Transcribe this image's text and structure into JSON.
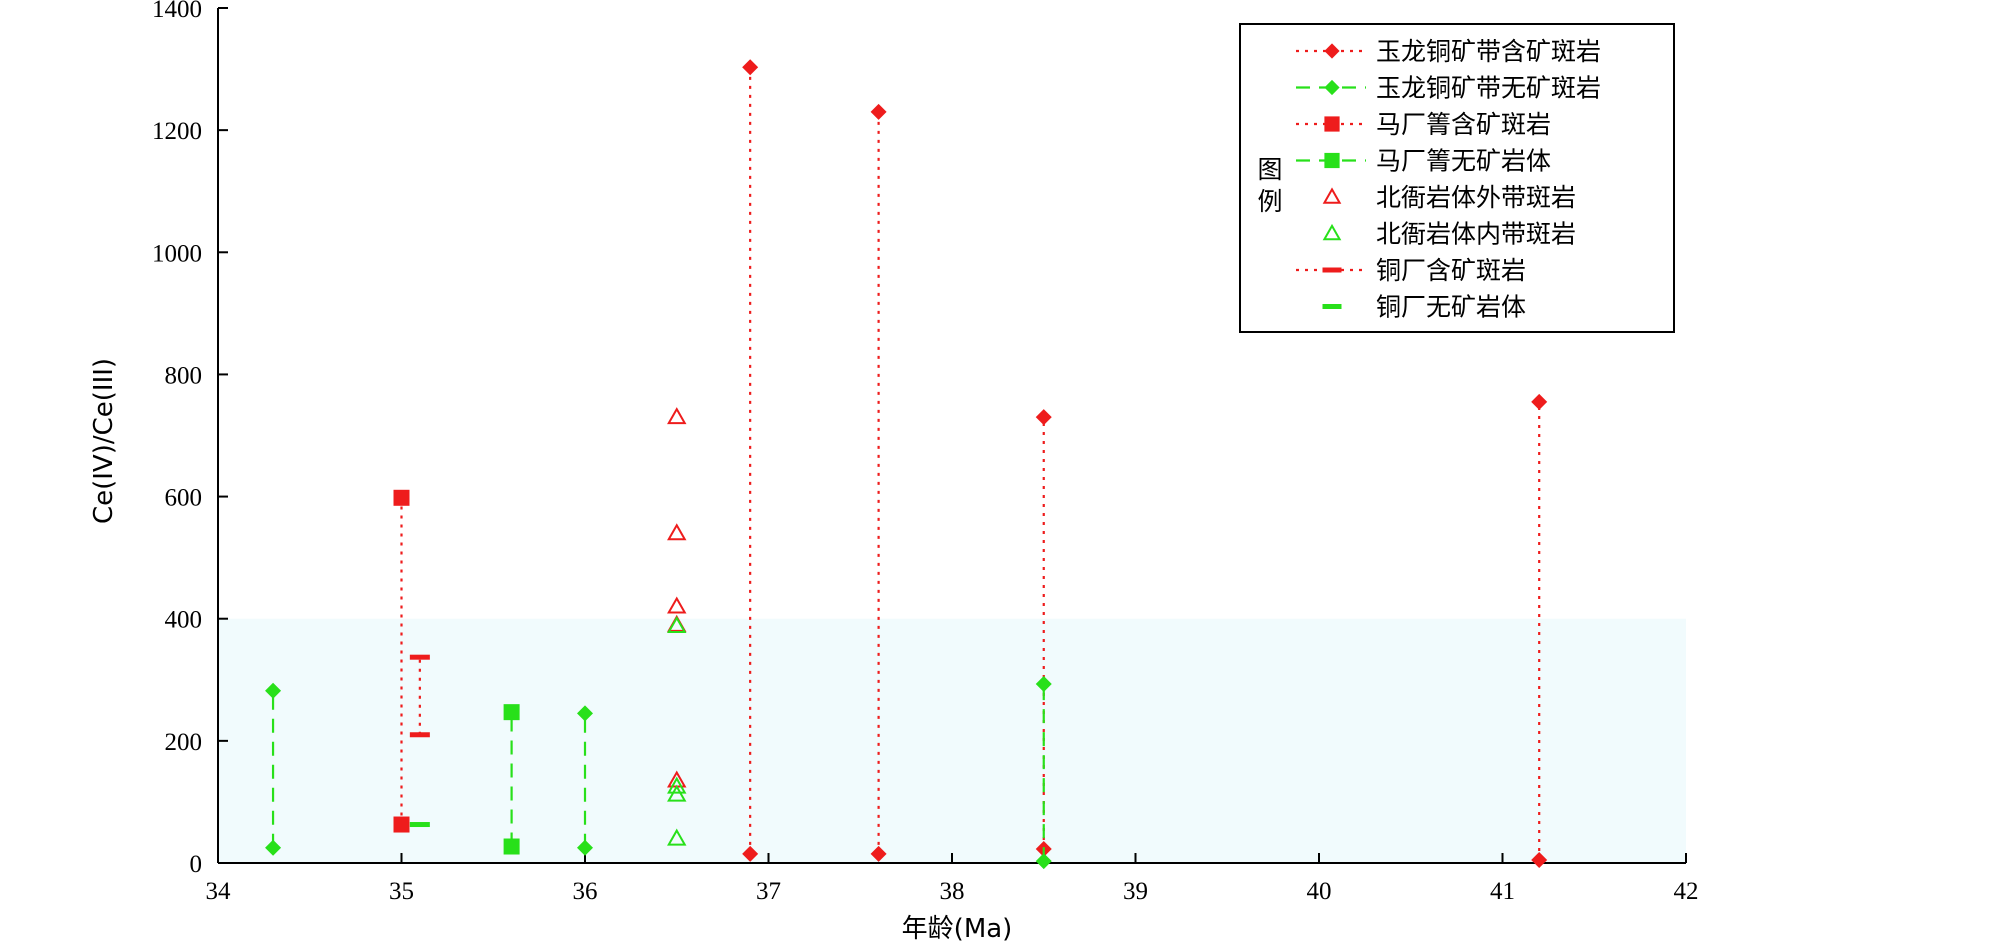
{
  "chart_data": {
    "type": "scatter",
    "xlabel": "年龄(Ma)",
    "ylabel": "Ce(IV)/Ce(III)",
    "xlim": [
      34,
      42
    ],
    "ylim": [
      0,
      1400
    ],
    "xticks": [
      34,
      35,
      36,
      37,
      38,
      39,
      40,
      41,
      42
    ],
    "yticks": [
      0,
      200,
      400,
      600,
      800,
      1000,
      1200,
      1400
    ],
    "shaded_band": {
      "y_from": 0,
      "y_to": 400,
      "color": "#f1fbfd"
    },
    "legend": {
      "title": "图例",
      "placement": "top-right"
    },
    "colors": {
      "red": "#ee1c1c",
      "green": "#28e01a"
    },
    "series": [
      {
        "name": "玉龙铜矿带含矿斑岩",
        "marker": "diamond",
        "color": "#ee1c1c",
        "line": "dotted",
        "ranges": [
          {
            "x": 36.9,
            "y": [
              15,
              1303
            ]
          },
          {
            "x": 37.6,
            "y": [
              15,
              1230
            ]
          },
          {
            "x": 38.5,
            "y": [
              23,
              730
            ]
          },
          {
            "x": 41.2,
            "y": [
              5,
              755
            ]
          }
        ]
      },
      {
        "name": "玉龙铜矿带无矿斑岩",
        "marker": "diamond",
        "color": "#28e01a",
        "line": "dashed",
        "ranges": [
          {
            "x": 34.3,
            "y": [
              25,
              282
            ]
          },
          {
            "x": 36.0,
            "y": [
              25,
              245
            ]
          },
          {
            "x": 38.5,
            "y": [
              3,
              293
            ]
          }
        ]
      },
      {
        "name": "马厂箐含矿斑岩",
        "marker": "square",
        "color": "#ee1c1c",
        "line": "dotted",
        "ranges": [
          {
            "x": 35.0,
            "y": [
              63,
              598
            ]
          }
        ]
      },
      {
        "name": "马厂箐无矿岩体",
        "marker": "square",
        "color": "#28e01a",
        "line": "dashed",
        "ranges": [
          {
            "x": 35.6,
            "y": [
              27,
              247
            ]
          }
        ]
      },
      {
        "name": "北衙岩体外带斑岩",
        "marker": "triangle",
        "color": "#ee1c1c",
        "line": "none",
        "points": [
          {
            "x": 36.5,
            "y": 730
          },
          {
            "x": 36.5,
            "y": 540
          },
          {
            "x": 36.5,
            "y": 420
          },
          {
            "x": 36.5,
            "y": 390
          },
          {
            "x": 36.5,
            "y": 135
          }
        ]
      },
      {
        "name": "北衙岩体内带斑岩",
        "marker": "triangle",
        "color": "#28e01a",
        "line": "none",
        "points": [
          {
            "x": 36.5,
            "y": 388
          },
          {
            "x": 36.5,
            "y": 125
          },
          {
            "x": 36.5,
            "y": 112
          },
          {
            "x": 36.5,
            "y": 40
          }
        ]
      },
      {
        "name": "铜厂含矿斑岩",
        "marker": "dash",
        "color": "#ee1c1c",
        "line": "dotted",
        "ranges": [
          {
            "x": 35.1,
            "y": [
              210,
              337
            ]
          }
        ]
      },
      {
        "name": "铜厂无矿岩体",
        "marker": "dash",
        "color": "#28e01a",
        "line": "none",
        "points": [
          {
            "x": 35.1,
            "y": 63
          }
        ]
      }
    ]
  }
}
